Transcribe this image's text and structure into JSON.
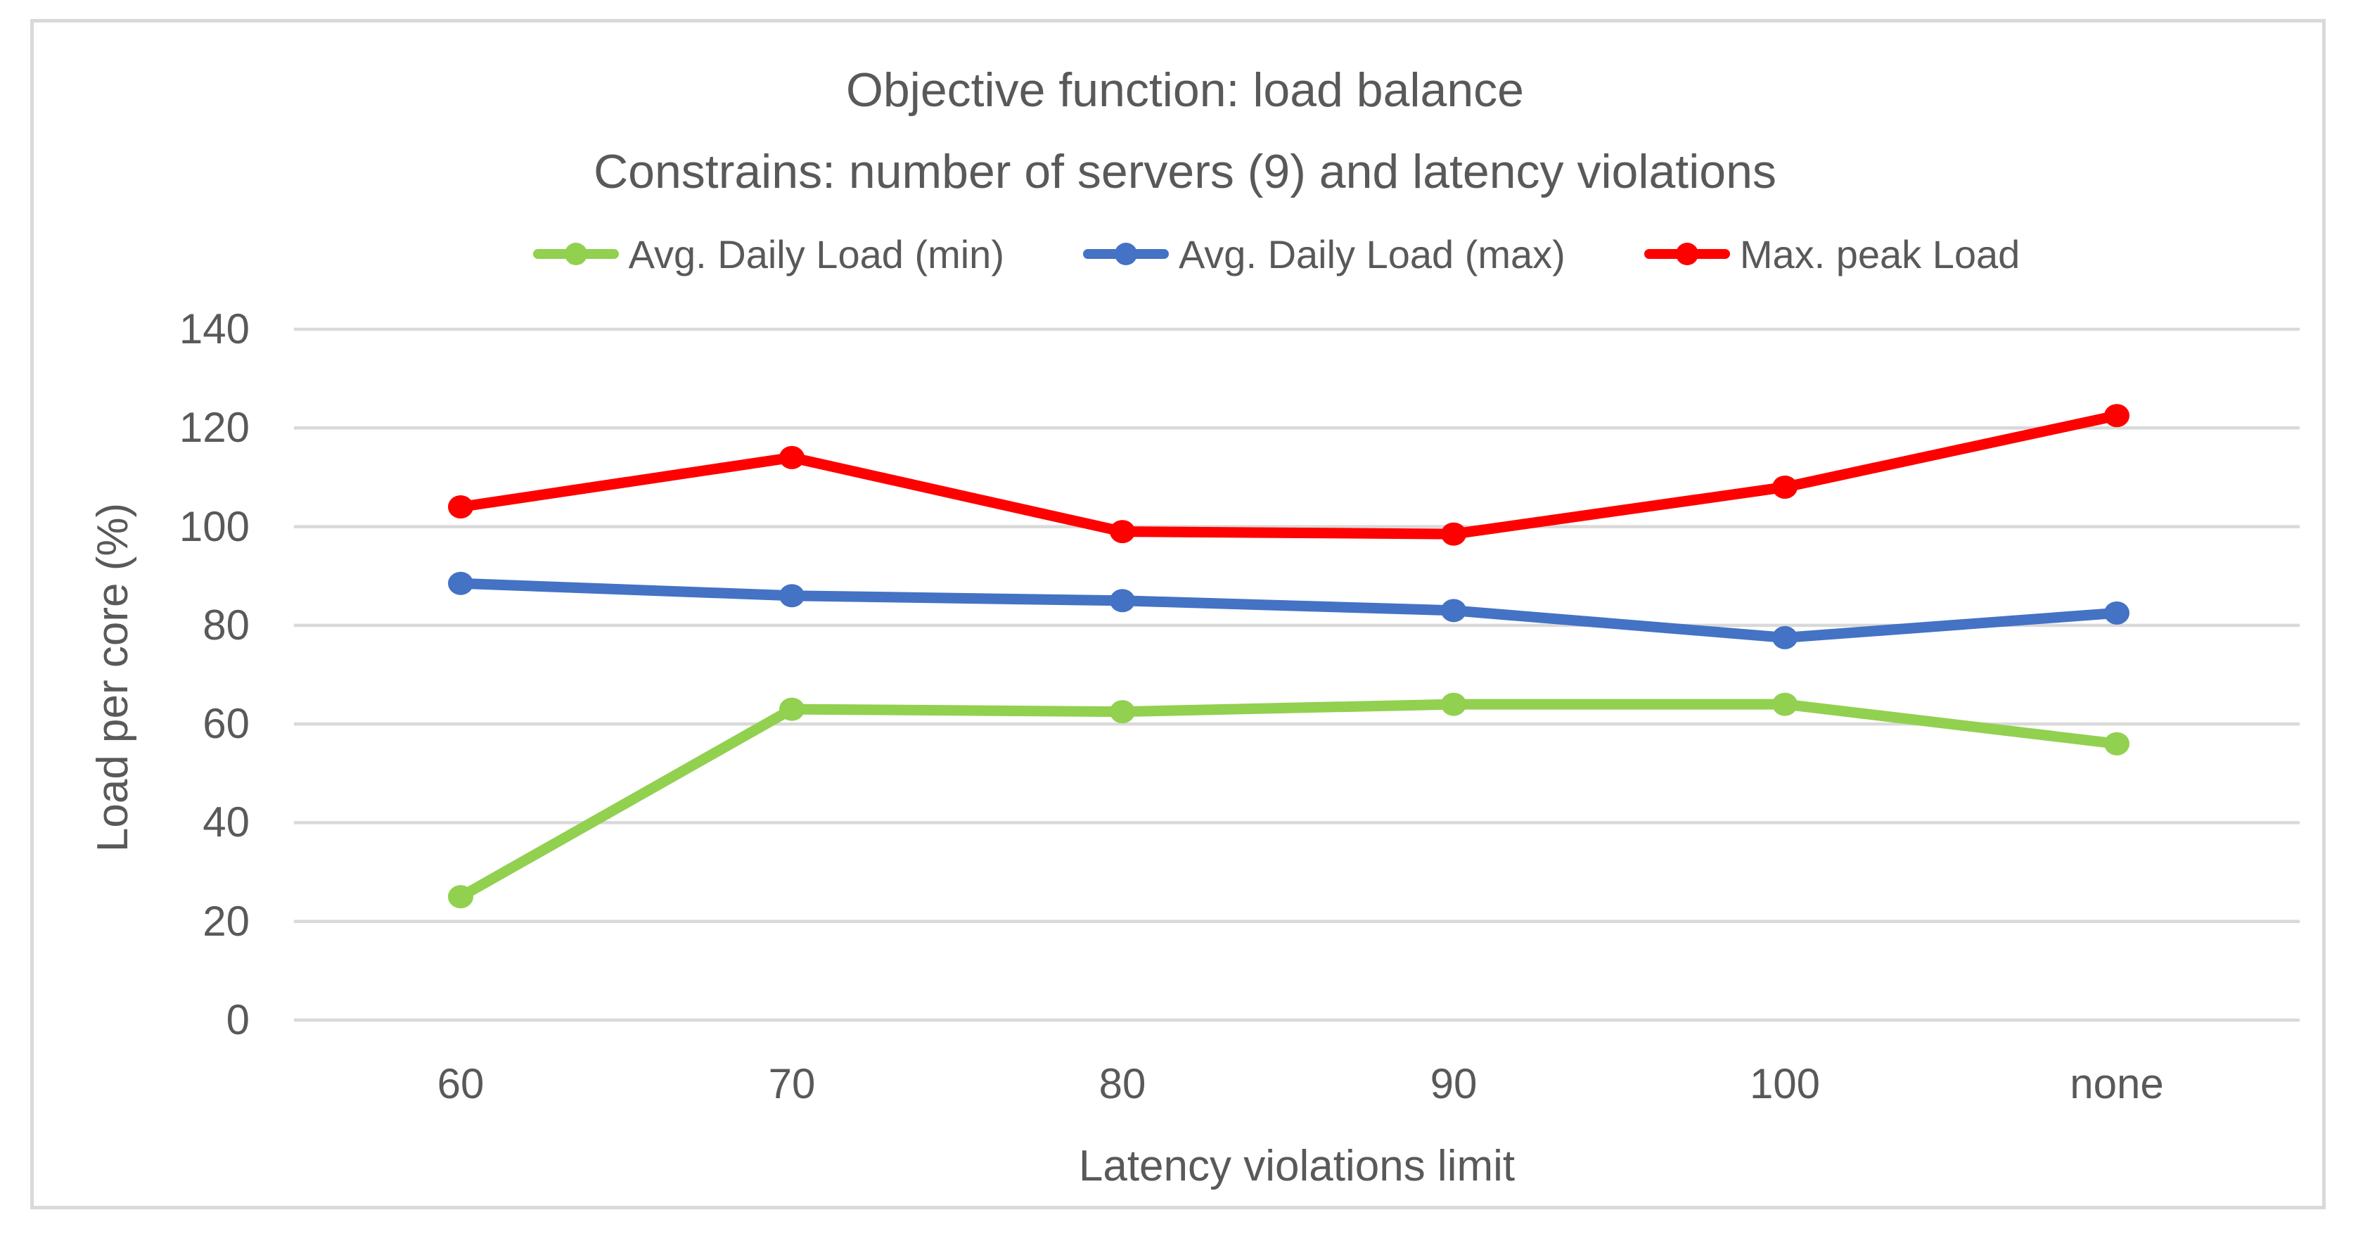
{
  "colors": {
    "text": "#595959",
    "gridline": "#d9d9d9",
    "frame_border": "#d9d9d9",
    "background": "#ffffff",
    "series_green": "#92D050",
    "series_blue": "#4472C4",
    "series_red": "#FF0000"
  },
  "chart_data": {
    "type": "line",
    "title_line1": "Objective function: load balance",
    "title_line2": "Constrains: number of servers (9) and latency violations",
    "categories": [
      "60",
      "70",
      "80",
      "90",
      "100",
      "none"
    ],
    "series": [
      {
        "name": "Avg. Daily Load (min)",
        "color": "#92D050",
        "values": [
          25,
          63,
          62.5,
          64,
          64,
          56
        ]
      },
      {
        "name": "Avg. Daily Load (max)",
        "color": "#4472C4",
        "values": [
          88.5,
          86,
          85,
          83,
          77.5,
          82.5
        ]
      },
      {
        "name": "Max. peak Load",
        "color": "#FF0000",
        "values": [
          104,
          114,
          99,
          98.5,
          108,
          122.5
        ]
      }
    ],
    "xlabel": "Latency violations limit",
    "ylabel": "Load per core (%)",
    "ylim": [
      0,
      140
    ],
    "yticks": [
      0,
      20,
      40,
      60,
      80,
      100,
      120,
      140
    ],
    "grid": "horizontal-only",
    "legend_position": "top",
    "marker": "circle"
  }
}
